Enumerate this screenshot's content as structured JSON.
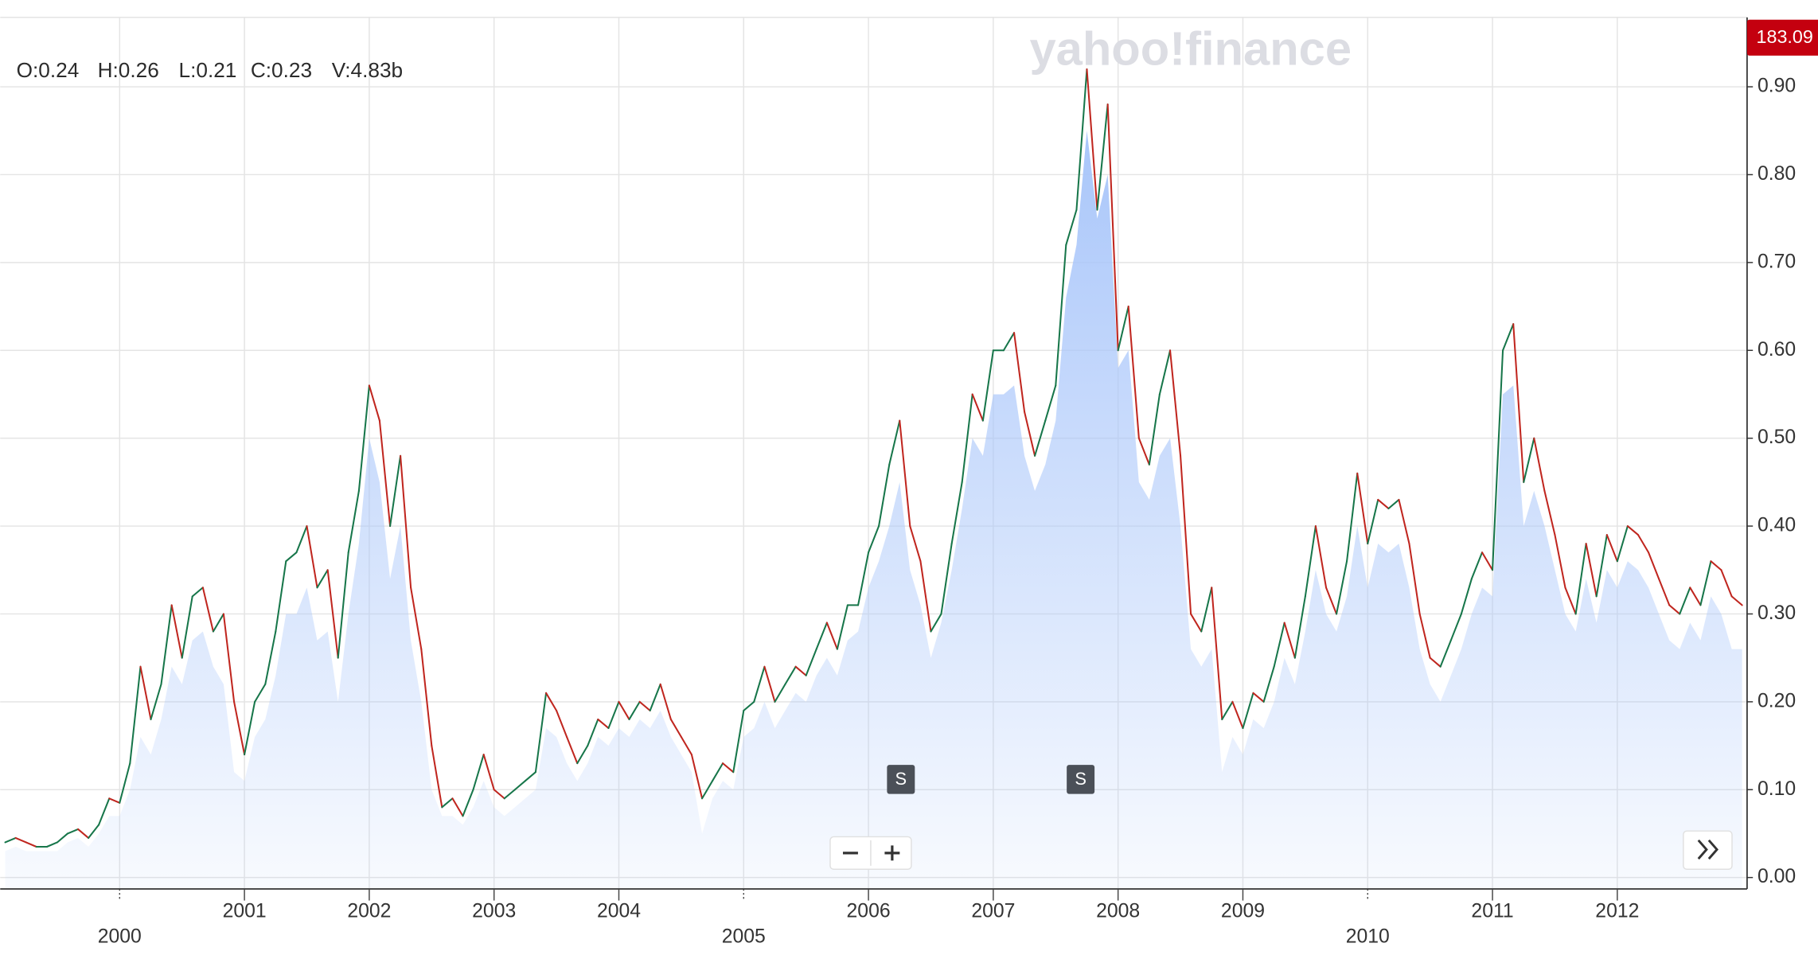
{
  "chart_data": {
    "type": "line",
    "watermark": "yahoo!finance",
    "price_tag": "183.09",
    "readout": [
      "O:0.24",
      "H:0.26",
      "L:0.21",
      "C:0.23",
      "V:4.83b"
    ],
    "x": [
      1999.083,
      1999.167,
      1999.25,
      1999.333,
      1999.417,
      1999.5,
      1999.583,
      1999.667,
      1999.75,
      1999.833,
      1999.917,
      2000.0,
      2000.083,
      2000.167,
      2000.25,
      2000.333,
      2000.417,
      2000.5,
      2000.583,
      2000.667,
      2000.75,
      2000.833,
      2000.917,
      2001.0,
      2001.083,
      2001.167,
      2001.25,
      2001.333,
      2001.417,
      2001.5,
      2001.583,
      2001.667,
      2001.75,
      2001.833,
      2001.917,
      2002.0,
      2002.083,
      2002.167,
      2002.25,
      2002.333,
      2002.417,
      2002.5,
      2002.583,
      2002.667,
      2002.75,
      2002.833,
      2002.917,
      2003.0,
      2003.083,
      2003.167,
      2003.25,
      2003.333,
      2003.417,
      2003.5,
      2003.583,
      2003.667,
      2003.75,
      2003.833,
      2003.917,
      2004.0,
      2004.083,
      2004.167,
      2004.25,
      2004.333,
      2004.417,
      2004.5,
      2004.583,
      2004.667,
      2004.75,
      2004.833,
      2004.917,
      2005.0,
      2005.083,
      2005.167,
      2005.25,
      2005.333,
      2005.417,
      2005.5,
      2005.583,
      2005.667,
      2005.75,
      2005.833,
      2005.917,
      2006.0,
      2006.083,
      2006.167,
      2006.25,
      2006.333,
      2006.417,
      2006.5,
      2006.583,
      2006.667,
      2006.75,
      2006.833,
      2006.917,
      2007.0,
      2007.083,
      2007.167,
      2007.25,
      2007.333,
      2007.417,
      2007.5,
      2007.583,
      2007.667,
      2007.75,
      2007.833,
      2007.917,
      2008.0,
      2008.083,
      2008.167,
      2008.25,
      2008.333,
      2008.417,
      2008.5,
      2008.583,
      2008.667,
      2008.75,
      2008.833,
      2008.917,
      2009.0,
      2009.083,
      2009.167,
      2009.25,
      2009.333,
      2009.417,
      2009.5,
      2009.583,
      2009.667,
      2009.75,
      2009.833,
      2009.917,
      2010.0,
      2010.083,
      2010.167,
      2010.25,
      2010.333,
      2010.417,
      2010.5,
      2010.583,
      2010.667,
      2010.75,
      2010.833,
      2010.917,
      2011.0,
      2011.083,
      2011.167,
      2011.25,
      2011.333,
      2011.417,
      2011.5,
      2011.583,
      2011.667,
      2011.75,
      2011.833,
      2011.917,
      2012.0,
      2012.083,
      2012.167,
      2012.25,
      2012.333,
      2012.417,
      2012.5,
      2012.583,
      2012.667,
      2012.75,
      2012.833,
      2012.917,
      2013.0
    ],
    "series": [
      {
        "style": "line",
        "up_color": "#17764a",
        "down_color": "#c0261f",
        "values": [
          0.04,
          0.045,
          0.04,
          0.035,
          0.035,
          0.04,
          0.05,
          0.055,
          0.045,
          0.06,
          0.09,
          0.085,
          0.13,
          0.24,
          0.18,
          0.22,
          0.31,
          0.25,
          0.32,
          0.33,
          0.28,
          0.3,
          0.2,
          0.14,
          0.2,
          0.22,
          0.28,
          0.36,
          0.37,
          0.4,
          0.33,
          0.35,
          0.25,
          0.37,
          0.44,
          0.56,
          0.52,
          0.4,
          0.48,
          0.33,
          0.26,
          0.15,
          0.08,
          0.09,
          0.07,
          0.1,
          0.14,
          0.1,
          0.09,
          0.1,
          0.11,
          0.12,
          0.21,
          0.19,
          0.16,
          0.13,
          0.15,
          0.18,
          0.17,
          0.2,
          0.18,
          0.2,
          0.19,
          0.22,
          0.18,
          0.16,
          0.14,
          0.09,
          0.11,
          0.13,
          0.12,
          0.19,
          0.2,
          0.24,
          0.2,
          0.22,
          0.24,
          0.23,
          0.26,
          0.29,
          0.26,
          0.31,
          0.31,
          0.37,
          0.4,
          0.47,
          0.52,
          0.4,
          0.36,
          0.28,
          0.3,
          0.38,
          0.45,
          0.55,
          0.52,
          0.6,
          0.6,
          0.62,
          0.53,
          0.48,
          0.52,
          0.56,
          0.72,
          0.76,
          0.92,
          0.76,
          0.88,
          0.6,
          0.65,
          0.5,
          0.47,
          0.55,
          0.6,
          0.48,
          0.3,
          0.28,
          0.33,
          0.18,
          0.2,
          0.17,
          0.21,
          0.2,
          0.24,
          0.29,
          0.25,
          0.32,
          0.4,
          0.33,
          0.3,
          0.36,
          0.46,
          0.38,
          0.43,
          0.42,
          0.43,
          0.38,
          0.3,
          0.25,
          0.24,
          0.27,
          0.3,
          0.34,
          0.37,
          0.35,
          0.6,
          0.63,
          0.45,
          0.5,
          0.44,
          0.39,
          0.33,
          0.3,
          0.38,
          0.32,
          0.39,
          0.36,
          0.4,
          0.39,
          0.37,
          0.34,
          0.31,
          0.3,
          0.33,
          0.31,
          0.36,
          0.35,
          0.32,
          0.31
        ]
      },
      {
        "style": "area",
        "color": "#a9c6fa",
        "values": [
          0.03,
          0.035,
          0.03,
          0.03,
          0.03,
          0.03,
          0.04,
          0.045,
          0.035,
          0.05,
          0.07,
          0.07,
          0.1,
          0.16,
          0.14,
          0.18,
          0.24,
          0.22,
          0.27,
          0.28,
          0.24,
          0.22,
          0.12,
          0.11,
          0.16,
          0.18,
          0.23,
          0.3,
          0.3,
          0.33,
          0.27,
          0.28,
          0.2,
          0.3,
          0.38,
          0.5,
          0.45,
          0.34,
          0.4,
          0.27,
          0.2,
          0.1,
          0.07,
          0.07,
          0.06,
          0.08,
          0.11,
          0.08,
          0.07,
          0.08,
          0.09,
          0.1,
          0.17,
          0.16,
          0.13,
          0.11,
          0.13,
          0.16,
          0.15,
          0.17,
          0.16,
          0.18,
          0.17,
          0.19,
          0.16,
          0.14,
          0.12,
          0.05,
          0.09,
          0.11,
          0.1,
          0.16,
          0.17,
          0.2,
          0.17,
          0.19,
          0.21,
          0.2,
          0.23,
          0.25,
          0.23,
          0.27,
          0.28,
          0.33,
          0.36,
          0.4,
          0.45,
          0.35,
          0.31,
          0.25,
          0.29,
          0.35,
          0.42,
          0.5,
          0.48,
          0.55,
          0.55,
          0.56,
          0.48,
          0.44,
          0.47,
          0.52,
          0.66,
          0.72,
          0.85,
          0.75,
          0.8,
          0.58,
          0.6,
          0.45,
          0.43,
          0.48,
          0.5,
          0.4,
          0.26,
          0.24,
          0.26,
          0.12,
          0.16,
          0.14,
          0.18,
          0.17,
          0.2,
          0.25,
          0.22,
          0.28,
          0.35,
          0.3,
          0.28,
          0.32,
          0.4,
          0.33,
          0.38,
          0.37,
          0.38,
          0.33,
          0.26,
          0.22,
          0.2,
          0.23,
          0.26,
          0.3,
          0.33,
          0.32,
          0.55,
          0.56,
          0.4,
          0.44,
          0.4,
          0.35,
          0.3,
          0.28,
          0.34,
          0.29,
          0.35,
          0.33,
          0.36,
          0.35,
          0.33,
          0.3,
          0.27,
          0.26,
          0.29,
          0.27,
          0.32,
          0.3,
          0.26,
          0.26
        ]
      }
    ],
    "events": [
      {
        "label": "S",
        "x": 2006.26
      },
      {
        "label": "S",
        "x": 2007.7
      }
    ],
    "xlim": [
      1999.043,
      2013.04
    ],
    "xticks": [
      2000,
      2001,
      2002,
      2003,
      2004,
      2005,
      2006,
      2007,
      2008,
      2009,
      2010,
      2011,
      2012
    ],
    "ylim": [
      -0.013,
      0.979
    ],
    "yticks": [
      {
        "value": 0,
        "label": "0.00"
      },
      {
        "value": 0.1,
        "label": "0.10"
      },
      {
        "value": 0.2,
        "label": "0.20"
      },
      {
        "value": 0.3,
        "label": "0.30"
      },
      {
        "value": 0.4,
        "label": "0.40"
      },
      {
        "value": 0.5,
        "label": "0.50"
      },
      {
        "value": 0.6,
        "label": "0.60"
      },
      {
        "value": 0.7,
        "label": "0.70"
      },
      {
        "value": 0.8,
        "label": "0.80"
      },
      {
        "value": 0.9,
        "label": "0.90"
      }
    ],
    "grid": true
  }
}
